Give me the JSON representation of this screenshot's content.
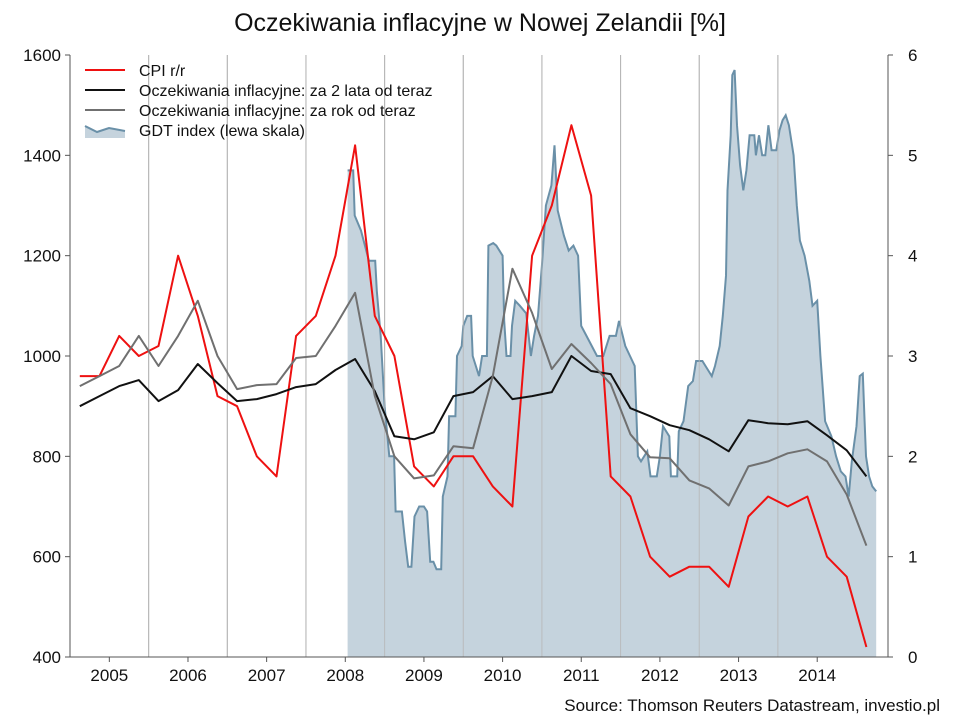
{
  "chart_data": {
    "type": "line",
    "title": "Oczekiwania inflacyjne w Nowej Zelandii [%]",
    "source": "Source: Thomson Reuters Datastream, investio.pl",
    "xlabel": "",
    "ylabel_left": "",
    "ylabel_right": "",
    "x_ticks": [
      "2005",
      "2006",
      "2007",
      "2008",
      "2009",
      "2010",
      "2011",
      "2012",
      "2013",
      "2014"
    ],
    "ylim_left": [
      400,
      1600
    ],
    "yticks_left": [
      "400",
      "600",
      "800",
      "1000",
      "1200",
      "1400",
      "1600"
    ],
    "ylim_right": [
      0,
      6
    ],
    "yticks_right": [
      "0",
      "1",
      "2",
      "3",
      "4",
      "5",
      "6"
    ],
    "grid": "vertical",
    "legend_position": "top-left",
    "colors": {
      "cpi": "#ee1111",
      "exp_2y": "#111111",
      "exp_1y": "#707070",
      "gdt_fill": "#c5d3dd",
      "gdt_line": "#6a90a8",
      "grid": "#b5b5b5",
      "axis": "#555555"
    },
    "series": [
      {
        "name": "CPI r/r",
        "key": "cpi",
        "axis": "right",
        "points": [
          [
            2004.625,
            2.8
          ],
          [
            2004.875,
            2.8
          ],
          [
            2005.125,
            3.2
          ],
          [
            2005.375,
            3.0
          ],
          [
            2005.625,
            3.1
          ],
          [
            2005.875,
            4.0
          ],
          [
            2006.125,
            3.4
          ],
          [
            2006.375,
            2.6
          ],
          [
            2006.625,
            2.5
          ],
          [
            2006.875,
            2.0
          ],
          [
            2007.125,
            1.8
          ],
          [
            2007.375,
            3.2
          ],
          [
            2007.625,
            3.4
          ],
          [
            2007.875,
            4.0
          ],
          [
            2008.125,
            5.1
          ],
          [
            2008.375,
            3.4
          ],
          [
            2008.625,
            3.0
          ],
          [
            2008.875,
            1.9
          ],
          [
            2009.125,
            1.7
          ],
          [
            2009.375,
            2.0
          ],
          [
            2009.625,
            2.0
          ],
          [
            2009.875,
            1.7
          ],
          [
            2010.125,
            1.5
          ],
          [
            2010.375,
            4.0
          ],
          [
            2010.625,
            4.5
          ],
          [
            2010.875,
            5.3
          ],
          [
            2011.125,
            4.6
          ],
          [
            2011.375,
            1.8
          ],
          [
            2011.625,
            1.6
          ],
          [
            2011.875,
            1.0
          ],
          [
            2012.125,
            0.8
          ],
          [
            2012.375,
            0.9
          ],
          [
            2012.625,
            0.9
          ],
          [
            2012.875,
            0.7
          ],
          [
            2013.125,
            1.4
          ],
          [
            2013.375,
            1.6
          ],
          [
            2013.625,
            1.5
          ],
          [
            2013.875,
            1.6
          ],
          [
            2014.125,
            1.0
          ],
          [
            2014.375,
            0.8
          ],
          [
            2014.625,
            0.1
          ]
        ]
      },
      {
        "name": "Oczekiwania inflacyjne: za 2 lata od teraz",
        "key": "exp_2y",
        "axis": "right",
        "points": [
          [
            2004.625,
            2.5
          ],
          [
            2004.875,
            2.6
          ],
          [
            2005.125,
            2.7
          ],
          [
            2005.375,
            2.76
          ],
          [
            2005.625,
            2.55
          ],
          [
            2005.875,
            2.66
          ],
          [
            2006.125,
            2.92
          ],
          [
            2006.375,
            2.73
          ],
          [
            2006.625,
            2.55
          ],
          [
            2006.875,
            2.57
          ],
          [
            2007.125,
            2.62
          ],
          [
            2007.375,
            2.69
          ],
          [
            2007.625,
            2.72
          ],
          [
            2007.875,
            2.86
          ],
          [
            2008.125,
            2.97
          ],
          [
            2008.375,
            2.65
          ],
          [
            2008.625,
            2.2
          ],
          [
            2008.875,
            2.17
          ],
          [
            2009.125,
            2.24
          ],
          [
            2009.375,
            2.6
          ],
          [
            2009.625,
            2.64
          ],
          [
            2009.875,
            2.8
          ],
          [
            2010.125,
            2.57
          ],
          [
            2010.375,
            2.6
          ],
          [
            2010.625,
            2.64
          ],
          [
            2010.875,
            3.0
          ],
          [
            2011.125,
            2.85
          ],
          [
            2011.375,
            2.82
          ],
          [
            2011.625,
            2.48
          ],
          [
            2011.875,
            2.4
          ],
          [
            2012.125,
            2.31
          ],
          [
            2012.375,
            2.26
          ],
          [
            2012.625,
            2.17
          ],
          [
            2012.875,
            2.05
          ],
          [
            2013.125,
            2.36
          ],
          [
            2013.375,
            2.33
          ],
          [
            2013.625,
            2.32
          ],
          [
            2013.875,
            2.35
          ],
          [
            2014.125,
            2.21
          ],
          [
            2014.375,
            2.06
          ],
          [
            2014.625,
            1.8
          ]
        ]
      },
      {
        "name": "Oczekiwania inflacyjne: za rok od teraz",
        "key": "exp_1y",
        "axis": "right",
        "points": [
          [
            2004.625,
            2.7
          ],
          [
            2004.875,
            2.8
          ],
          [
            2005.125,
            2.9
          ],
          [
            2005.375,
            3.2
          ],
          [
            2005.625,
            2.9
          ],
          [
            2005.875,
            3.2
          ],
          [
            2006.125,
            3.55
          ],
          [
            2006.375,
            3.0
          ],
          [
            2006.625,
            2.67
          ],
          [
            2006.875,
            2.71
          ],
          [
            2007.125,
            2.72
          ],
          [
            2007.375,
            2.98
          ],
          [
            2007.625,
            3.0
          ],
          [
            2007.875,
            3.3
          ],
          [
            2008.125,
            3.63
          ],
          [
            2008.375,
            2.6
          ],
          [
            2008.625,
            2.0
          ],
          [
            2008.875,
            1.78
          ],
          [
            2009.125,
            1.81
          ],
          [
            2009.375,
            2.1
          ],
          [
            2009.625,
            2.08
          ],
          [
            2009.875,
            2.8
          ],
          [
            2010.125,
            3.87
          ],
          [
            2010.375,
            3.43
          ],
          [
            2010.625,
            2.87
          ],
          [
            2010.875,
            3.12
          ],
          [
            2011.125,
            2.93
          ],
          [
            2011.375,
            2.72
          ],
          [
            2011.625,
            2.22
          ],
          [
            2011.875,
            1.99
          ],
          [
            2012.125,
            1.98
          ],
          [
            2012.375,
            1.76
          ],
          [
            2012.625,
            1.68
          ],
          [
            2012.875,
            1.51
          ],
          [
            2013.125,
            1.9
          ],
          [
            2013.375,
            1.95
          ],
          [
            2013.625,
            2.03
          ],
          [
            2013.875,
            2.07
          ],
          [
            2014.125,
            1.95
          ],
          [
            2014.375,
            1.62
          ],
          [
            2014.625,
            1.11
          ]
        ]
      },
      {
        "name": "GDT index (lewa skala)",
        "key": "gdt",
        "axis": "left",
        "type": "area",
        "points": [
          [
            2008.03,
            1370
          ],
          [
            2008.1,
            1370
          ],
          [
            2008.12,
            1280
          ],
          [
            2008.2,
            1250
          ],
          [
            2008.3,
            1190
          ],
          [
            2008.38,
            1190
          ],
          [
            2008.4,
            1130
          ],
          [
            2008.45,
            1040
          ],
          [
            2008.5,
            900
          ],
          [
            2008.56,
            800
          ],
          [
            2008.62,
            800
          ],
          [
            2008.64,
            690
          ],
          [
            2008.72,
            690
          ],
          [
            2008.76,
            630
          ],
          [
            2008.8,
            580
          ],
          [
            2008.84,
            580
          ],
          [
            2008.88,
            680
          ],
          [
            2008.94,
            700
          ],
          [
            2009.0,
            700
          ],
          [
            2009.04,
            690
          ],
          [
            2009.08,
            590
          ],
          [
            2009.12,
            590
          ],
          [
            2009.16,
            575
          ],
          [
            2009.22,
            575
          ],
          [
            2009.24,
            720
          ],
          [
            2009.3,
            760
          ],
          [
            2009.32,
            880
          ],
          [
            2009.4,
            880
          ],
          [
            2009.42,
            1000
          ],
          [
            2009.48,
            1020
          ],
          [
            2009.5,
            1060
          ],
          [
            2009.55,
            1080
          ],
          [
            2009.6,
            1080
          ],
          [
            2009.62,
            1000
          ],
          [
            2009.7,
            960
          ],
          [
            2009.74,
            1000
          ],
          [
            2009.8,
            1000
          ],
          [
            2009.82,
            1220
          ],
          [
            2009.88,
            1225
          ],
          [
            2009.92,
            1220
          ],
          [
            2010.0,
            1200
          ],
          [
            2010.02,
            1070
          ],
          [
            2010.05,
            1000
          ],
          [
            2010.1,
            1000
          ],
          [
            2010.12,
            1060
          ],
          [
            2010.16,
            1110
          ],
          [
            2010.22,
            1100
          ],
          [
            2010.3,
            1085
          ],
          [
            2010.36,
            1000
          ],
          [
            2010.4,
            1040
          ],
          [
            2010.45,
            1080
          ],
          [
            2010.5,
            1180
          ],
          [
            2010.55,
            1300
          ],
          [
            2010.62,
            1340
          ],
          [
            2010.66,
            1420
          ],
          [
            2010.7,
            1290
          ],
          [
            2010.78,
            1240
          ],
          [
            2010.84,
            1210
          ],
          [
            2010.9,
            1220
          ],
          [
            2010.96,
            1200
          ],
          [
            2011.0,
            1060
          ],
          [
            2011.1,
            1030
          ],
          [
            2011.2,
            1000
          ],
          [
            2011.28,
            1000
          ],
          [
            2011.36,
            1040
          ],
          [
            2011.44,
            1040
          ],
          [
            2011.48,
            1070
          ],
          [
            2011.56,
            1020
          ],
          [
            2011.62,
            1000
          ],
          [
            2011.68,
            980
          ],
          [
            2011.72,
            800
          ],
          [
            2011.76,
            790
          ],
          [
            2011.84,
            810
          ],
          [
            2011.88,
            760
          ],
          [
            2011.96,
            760
          ],
          [
            2012.0,
            800
          ],
          [
            2012.04,
            860
          ],
          [
            2012.12,
            840
          ],
          [
            2012.14,
            760
          ],
          [
            2012.22,
            760
          ],
          [
            2012.24,
            850
          ],
          [
            2012.3,
            870
          ],
          [
            2012.36,
            940
          ],
          [
            2012.42,
            950
          ],
          [
            2012.46,
            990
          ],
          [
            2012.54,
            990
          ],
          [
            2012.58,
            980
          ],
          [
            2012.66,
            960
          ],
          [
            2012.7,
            980
          ],
          [
            2012.76,
            1020
          ],
          [
            2012.8,
            1080
          ],
          [
            2012.84,
            1160
          ],
          [
            2012.86,
            1330
          ],
          [
            2012.9,
            1440
          ],
          [
            2012.92,
            1560
          ],
          [
            2012.95,
            1570
          ],
          [
            2012.98,
            1460
          ],
          [
            2013.02,
            1380
          ],
          [
            2013.06,
            1330
          ],
          [
            2013.1,
            1370
          ],
          [
            2013.14,
            1440
          ],
          [
            2013.2,
            1440
          ],
          [
            2013.22,
            1400
          ],
          [
            2013.26,
            1440
          ],
          [
            2013.3,
            1400
          ],
          [
            2013.34,
            1400
          ],
          [
            2013.38,
            1460
          ],
          [
            2013.42,
            1410
          ],
          [
            2013.48,
            1410
          ],
          [
            2013.52,
            1450
          ],
          [
            2013.56,
            1470
          ],
          [
            2013.6,
            1480
          ],
          [
            2013.64,
            1460
          ],
          [
            2013.7,
            1400
          ],
          [
            2013.74,
            1300
          ],
          [
            2013.78,
            1230
          ],
          [
            2013.84,
            1200
          ],
          [
            2013.9,
            1150
          ],
          [
            2013.94,
            1100
          ],
          [
            2014.0,
            1110
          ],
          [
            2014.04,
            1000
          ],
          [
            2014.1,
            870
          ],
          [
            2014.18,
            840
          ],
          [
            2014.24,
            800
          ],
          [
            2014.3,
            770
          ],
          [
            2014.36,
            760
          ],
          [
            2014.4,
            720
          ],
          [
            2014.44,
            790
          ],
          [
            2014.5,
            860
          ],
          [
            2014.54,
            960
          ],
          [
            2014.58,
            965
          ],
          [
            2014.6,
            880
          ],
          [
            2014.62,
            800
          ],
          [
            2014.66,
            760
          ],
          [
            2014.7,
            740
          ],
          [
            2014.75,
            730
          ]
        ]
      }
    ]
  }
}
